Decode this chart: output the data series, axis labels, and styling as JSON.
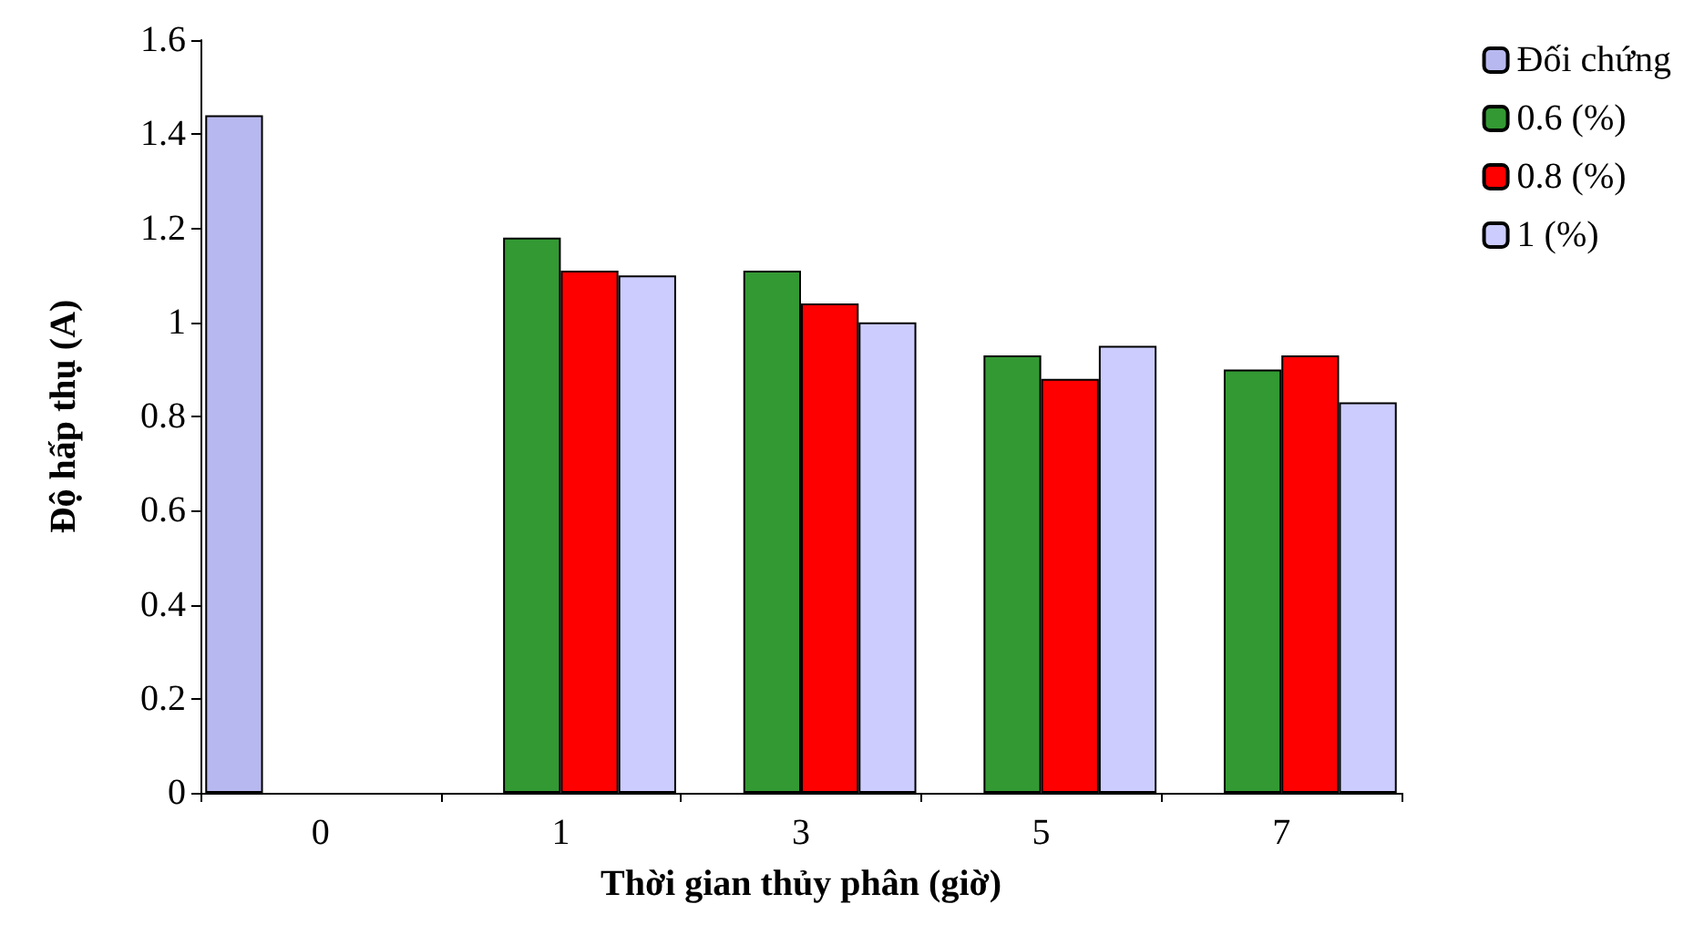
{
  "chart_data": {
    "type": "bar",
    "xlabel": "Thời gian thủy phân (giờ)",
    "ylabel": "Độ hấp thụ (A)",
    "categories": [
      "0",
      "1",
      "3",
      "5",
      "7"
    ],
    "series": [
      {
        "name": "Đối chứng",
        "color": "#b8b8f0",
        "values": [
          1.44,
          null,
          null,
          null,
          null
        ]
      },
      {
        "name": "0.6 (%)",
        "color": "#339933",
        "values": [
          null,
          1.18,
          1.11,
          0.93,
          0.9
        ]
      },
      {
        "name": "0.8 (%)",
        "color": "#ff0000",
        "values": [
          null,
          1.11,
          1.04,
          0.88,
          0.93
        ]
      },
      {
        "name": "1 (%)",
        "color": "#ccccff",
        "values": [
          null,
          1.1,
          1.0,
          0.95,
          0.83
        ]
      }
    ],
    "ylim": [
      0,
      1.6
    ],
    "yticks": [
      0,
      0.2,
      0.4,
      0.6,
      0.8,
      1,
      1.2,
      1.4,
      1.6
    ],
    "grid": false,
    "legend": "top right"
  }
}
